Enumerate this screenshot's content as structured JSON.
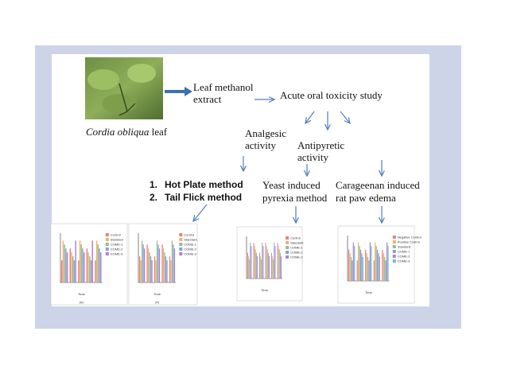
{
  "photo_caption": {
    "italic": "Cordia obliqua",
    "rest": " leaf"
  },
  "extract": [
    "Leaf methanol",
    "extract"
  ],
  "toxicity": "Acute oral toxicity study",
  "analgesic": [
    "Analgesic",
    "activity"
  ],
  "antipyretic": [
    "Antipyretic",
    "activity"
  ],
  "methods": [
    "1.",
    "Hot Plate method",
    "2.",
    "Tail Flick method"
  ],
  "yeast": [
    "Yeast induced",
    "pyrexia method"
  ],
  "carageenan": [
    "Carageenan induced",
    "rat paw edema"
  ],
  "thumb_captions": [
    "(a)",
    "(b)"
  ],
  "legend_a": [
    "Control",
    "Standard",
    "COME-1",
    "COME-2",
    "COME-3"
  ],
  "legend_d": [
    "Negative Control",
    "Positive Control",
    "Standard",
    "COME-1",
    "COME-2",
    "COME-3"
  ],
  "time_label": "Time"
}
